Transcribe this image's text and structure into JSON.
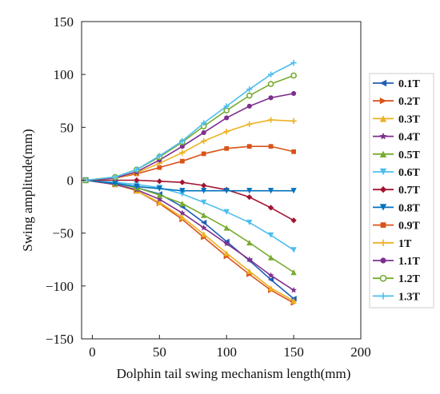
{
  "chart_data": {
    "type": "line",
    "title": "",
    "xlabel": "Dolphin tail swing mechanism length(mm)",
    "ylabel": "Swing amplitude(mm)",
    "xlim": [
      -8,
      200
    ],
    "ylim": [
      -150,
      150
    ],
    "xticks": [
      0,
      50,
      100,
      150,
      200
    ],
    "xtick_labels": [
      "0",
      "50",
      "100",
      "150",
      "200"
    ],
    "yticks": [
      150,
      100,
      50,
      0,
      -50,
      -100,
      -150
    ],
    "ytick_labels": [
      "150",
      "100",
      "50",
      "0",
      "−50",
      "−100",
      "−150"
    ],
    "grid": false,
    "legend_position": "right",
    "x": [
      -5,
      17,
      33,
      50,
      67,
      83,
      100,
      117,
      133,
      150
    ],
    "series": [
      {
        "name": "0.1T",
        "color": "#1f5fb4",
        "marker": "tri-left",
        "values": [
          0,
          -3,
          -7,
          -13,
          -25,
          -40,
          -58,
          -76,
          -94,
          -112
        ]
      },
      {
        "name": "0.2T",
        "color": "#d9541a",
        "marker": "tri-right",
        "values": [
          0,
          -4,
          -10,
          -22,
          -37,
          -54,
          -72,
          -89,
          -104,
          -116
        ]
      },
      {
        "name": "0.3T",
        "color": "#edb120",
        "marker": "tri-up",
        "values": [
          0,
          -4,
          -10,
          -21,
          -35,
          -51,
          -69,
          -86,
          -102,
          -114
        ]
      },
      {
        "name": "0.4T",
        "color": "#7e2f8e",
        "marker": "star",
        "values": [
          0,
          -4,
          -9,
          -18,
          -31,
          -45,
          -60,
          -75,
          -90,
          -104
        ]
      },
      {
        "name": "0.5T",
        "color": "#77ac30",
        "marker": "tri-up",
        "values": [
          0,
          -3,
          -7,
          -14,
          -22,
          -33,
          -45,
          -59,
          -73,
          -87
        ]
      },
      {
        "name": "0.6T",
        "color": "#4dbeee",
        "marker": "tri-down",
        "values": [
          0,
          -2,
          -4,
          -7,
          -13,
          -21,
          -30,
          -40,
          -52,
          -66
        ]
      },
      {
        "name": "0.7T",
        "color": "#a2142f",
        "marker": "diamond",
        "values": [
          0,
          0,
          0,
          -1,
          -2,
          -5,
          -9,
          -16,
          -26,
          -38
        ]
      },
      {
        "name": "0.8T",
        "color": "#0072bd",
        "marker": "tri-down",
        "values": [
          0,
          -3,
          -6,
          -8,
          -10,
          -10,
          -10,
          -10,
          -10,
          -10
        ]
      },
      {
        "name": "0.9T",
        "color": "#d95319",
        "marker": "square",
        "values": [
          0,
          2,
          6,
          12,
          18,
          25,
          30,
          32,
          32,
          27
        ]
      },
      {
        "name": "1T",
        "color": "#edb120",
        "marker": "plus",
        "values": [
          0,
          2,
          7,
          16,
          26,
          37,
          46,
          53,
          57,
          56
        ]
      },
      {
        "name": "1.1T",
        "color": "#7e2f8e",
        "marker": "circle",
        "values": [
          0,
          2,
          8,
          19,
          32,
          45,
          59,
          70,
          78,
          82
        ]
      },
      {
        "name": "1.2T",
        "color": "#77ac30",
        "marker": "circle-open",
        "values": [
          0,
          3,
          10,
          22,
          36,
          51,
          66,
          80,
          91,
          99
        ]
      },
      {
        "name": "1.3T",
        "color": "#4dbeee",
        "marker": "plus",
        "values": [
          0,
          3,
          10,
          23,
          37,
          54,
          70,
          86,
          100,
          111
        ]
      }
    ]
  }
}
